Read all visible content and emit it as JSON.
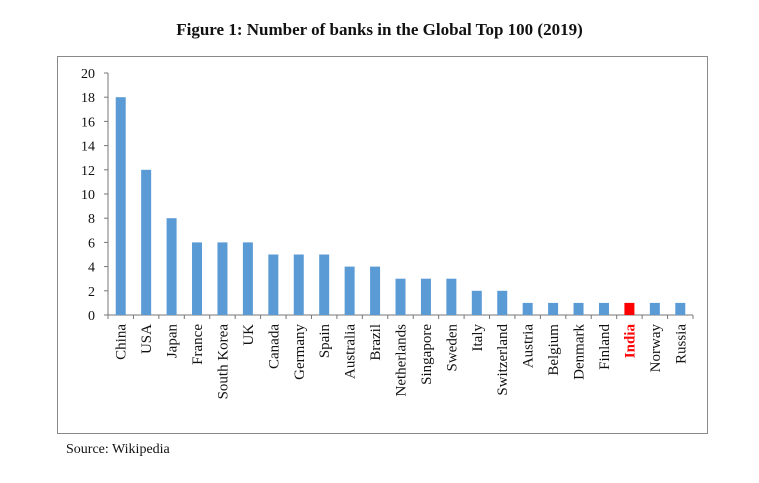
{
  "chart_data": {
    "type": "bar",
    "title": "Figure 1: Number of banks in the Global Top 100 (2019)",
    "xlabel": "",
    "ylabel": "",
    "categories": [
      "China",
      "USA",
      "Japan",
      "France",
      "South Korea",
      "UK",
      "Canada",
      "Germany",
      "Spain",
      "Australia",
      "Brazil",
      "Netherlands",
      "Singapore",
      "Sweden",
      "Italy",
      "Switzerland",
      "Austria",
      "Belgium",
      "Denmark",
      "Finland",
      "India",
      "Norway",
      "Russia"
    ],
    "values": [
      18,
      12,
      8,
      6,
      6,
      6,
      5,
      5,
      5,
      4,
      4,
      3,
      3,
      3,
      2,
      2,
      1,
      1,
      1,
      1,
      1,
      1,
      1
    ],
    "ylim": [
      0,
      20
    ],
    "yticks": [
      0,
      2,
      4,
      6,
      8,
      10,
      12,
      14,
      16,
      18,
      20
    ],
    "grid": false,
    "bar_color": "#5b9bd5",
    "highlight": {
      "category": "India",
      "bar_color": "#ff0000",
      "label_color": "#ff0000",
      "label_bold": true
    },
    "source": "Source: Wikipedia"
  }
}
